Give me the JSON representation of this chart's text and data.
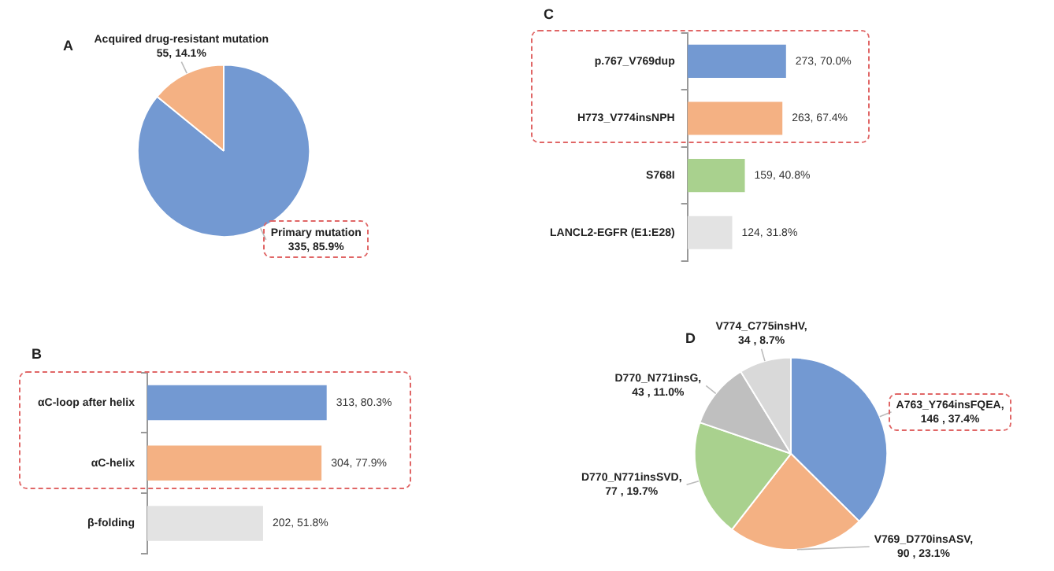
{
  "chart_data": [
    {
      "type": "pie",
      "title": "A",
      "categories": [
        "Primary mutation",
        "Acquired drug-resistant mutation"
      ],
      "values": [
        335,
        55
      ],
      "colors": [
        "#7399d2",
        "#f4b183"
      ],
      "value_labels": [
        "335, 85.9%",
        "55, 14.1%"
      ]
    },
    {
      "type": "bar",
      "title": "C",
      "orientation": "horizontal",
      "categories": [
        "p.767_V769dup",
        "H773_V774insNPH",
        "S768I",
        "LANCL2-EGFR (E1:E28)"
      ],
      "values": [
        273,
        263,
        159,
        124
      ],
      "colors": [
        "#7399d2",
        "#f4b183",
        "#a9d18e",
        "#e3e3e3"
      ],
      "value_labels": [
        "273, 70.0%",
        "263, 67.4%",
        "159, 40.8%",
        "124, 31.8%"
      ]
    },
    {
      "type": "bar",
      "title": "B",
      "orientation": "horizontal",
      "categories": [
        "αC-loop after helix",
        "αC-helix",
        "β-folding"
      ],
      "values": [
        313,
        304,
        202
      ],
      "colors": [
        "#7399d2",
        "#f4b183",
        "#e3e3e3"
      ],
      "value_labels": [
        "313, 80.3%",
        "304, 77.9%",
        "202, 51.8%"
      ]
    },
    {
      "type": "pie",
      "title": "D",
      "categories": [
        "A763_Y764insFQEA",
        "V769_D770insASV",
        "D770_N771insSVD",
        "D770_N771insG",
        "V774_C775insHV"
      ],
      "values": [
        146,
        90,
        77,
        43,
        34
      ],
      "colors": [
        "#7399d2",
        "#f4b183",
        "#a9d18e",
        "#bfbfbf",
        "#d9d9d9"
      ],
      "value_labels": [
        ", 146 , 37.4%",
        ", 90 , 23.1%",
        ", 77 , 19.7%",
        ", 43 , 11.0%",
        ", 34 , 8.7%"
      ]
    }
  ]
}
